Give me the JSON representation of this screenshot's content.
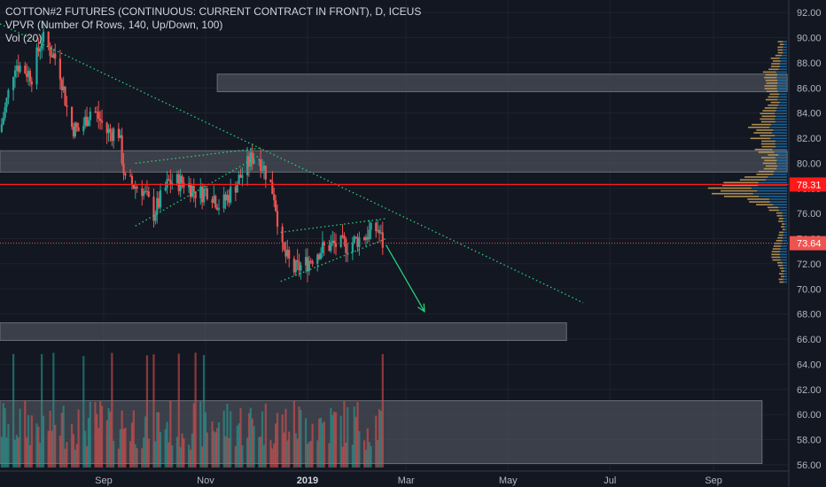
{
  "legend": {
    "title": "COTTON#2 FUTURES (CONTINUOUS: CURRENT CONTRACT IN FRONT), D, ICEUS",
    "vpvr": "VPVR (Number Of Rows, 140, Up/Down, 100)",
    "vol": "Vol (20)"
  },
  "colors": {
    "background": "#131722",
    "up": "#26a69a",
    "down": "#ef5350",
    "trendline": "#26d07c",
    "zone": "#4a4d57",
    "price_line": "#ff1a1a",
    "vpvr_up": "#1e6fa8",
    "vpvr_down": "#c9a25a"
  },
  "chart_data": {
    "type": "candlestick",
    "y_ticks": [
      "92.00",
      "90.00",
      "88.00",
      "86.00",
      "84.00",
      "82.00",
      "80.00",
      "78.00",
      "76.00",
      "74.00",
      "72.00",
      "70.00",
      "68.00",
      "66.00",
      "64.00",
      "62.00",
      "60.00",
      "58.00",
      "56.00"
    ],
    "x_ticks": [
      "Sep",
      "Nov",
      "2019",
      "Mar",
      "May",
      "Jul",
      "Sep"
    ],
    "ylim": [
      55.5,
      93.0
    ],
    "price_labels": [
      {
        "value": 78.31,
        "text": "78.31",
        "color": "#ff1a1a"
      },
      {
        "value": 73.64,
        "text": "73.64",
        "color": "#ef5350"
      }
    ],
    "zones": [
      {
        "from": 85.7,
        "to": 87.1,
        "start": "Nov 8 2018",
        "end": "Oct 15 2019"
      },
      {
        "from": 79.3,
        "to": 81.0,
        "start": "Jul 1 2018",
        "end": "Oct 15 2019"
      },
      {
        "from": 65.9,
        "to": 67.3,
        "start": "Jul 1 2018",
        "end": "Jun 5 2019"
      },
      {
        "from": 56.1,
        "to": 61.1,
        "start": "Jul 1 2018",
        "end": "Sep 30 2019"
      }
    ],
    "trendlines": [
      {
        "from": [
          "Jul 1 2018",
          91.1
        ],
        "to": [
          "Jun 15 2019",
          68.9
        ]
      },
      {
        "from": [
          "Sep 20 2018",
          80.0
        ],
        "to": [
          "Dec 3 2018",
          81.2
        ]
      },
      {
        "from": [
          "Sep 20 2018",
          75.0
        ],
        "to": [
          "Dec 3 2018",
          80.6
        ]
      },
      {
        "from": [
          "Dec 16 2018",
          74.5
        ],
        "to": [
          "Feb 17 2019",
          75.6
        ]
      },
      {
        "from": [
          "Dec 16 2018",
          70.6
        ],
        "to": [
          "Feb 17 2019",
          74.0
        ]
      }
    ],
    "arrow": {
      "from": [
        "Feb 17 2019",
        73.5
      ],
      "to": [
        "Mar 12 2019",
        68.2
      ]
    }
  }
}
